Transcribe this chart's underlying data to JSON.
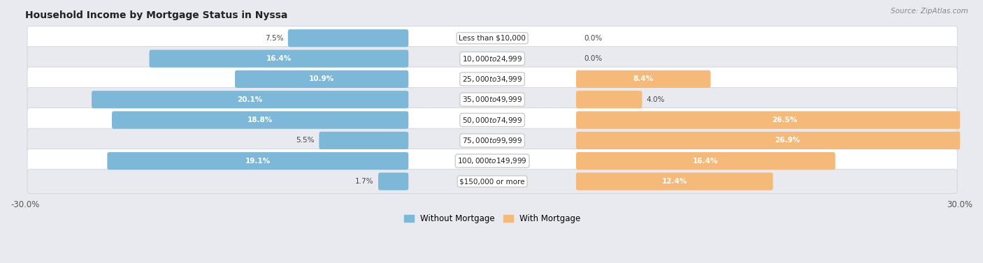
{
  "title": "Household Income by Mortgage Status in Nyssa",
  "source": "Source: ZipAtlas.com",
  "categories": [
    "Less than $10,000",
    "$10,000 to $24,999",
    "$25,000 to $34,999",
    "$35,000 to $49,999",
    "$50,000 to $74,999",
    "$75,000 to $99,999",
    "$100,000 to $149,999",
    "$150,000 or more"
  ],
  "without_mortgage": [
    7.5,
    16.4,
    10.9,
    20.1,
    18.8,
    5.5,
    19.1,
    1.7
  ],
  "with_mortgage": [
    0.0,
    0.0,
    8.4,
    4.0,
    26.5,
    26.9,
    16.4,
    12.4
  ],
  "color_without": "#7eb8d8",
  "color_with": "#f5b97a",
  "xlim": 30.0,
  "legend_labels": [
    "Without Mortgage",
    "With Mortgage"
  ],
  "background_color": "#e8eaf0",
  "row_color_odd": "#ffffff",
  "row_color_even": "#e8eaf0"
}
